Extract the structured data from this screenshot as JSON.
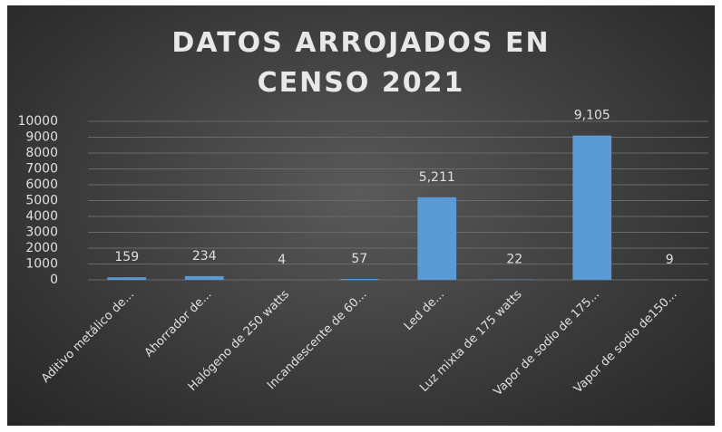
{
  "chart_data": {
    "type": "bar",
    "title": "DATOS ARROJADOS EN CENSO 2021",
    "categories": [
      "Aditivo metálico de...",
      "Ahorrador de...",
      "Halógeno de 250 watts",
      "Incandescente de 60...",
      "Led de...",
      "Luz mixta de 175 watts",
      "Vapor de sodio de 175...",
      "Vapor de sodio de150..."
    ],
    "values": [
      159,
      234,
      4,
      57,
      5211,
      22,
      9105,
      9
    ],
    "value_labels": [
      "159",
      "234",
      "4",
      "57",
      "5,211",
      "22",
      "9,105",
      "9"
    ],
    "color": "#5b9bd5",
    "ylim": [
      0,
      10000
    ],
    "yticks": [
      0,
      1000,
      2000,
      3000,
      4000,
      5000,
      6000,
      7000,
      8000,
      9000,
      10000
    ],
    "grid": true
  }
}
